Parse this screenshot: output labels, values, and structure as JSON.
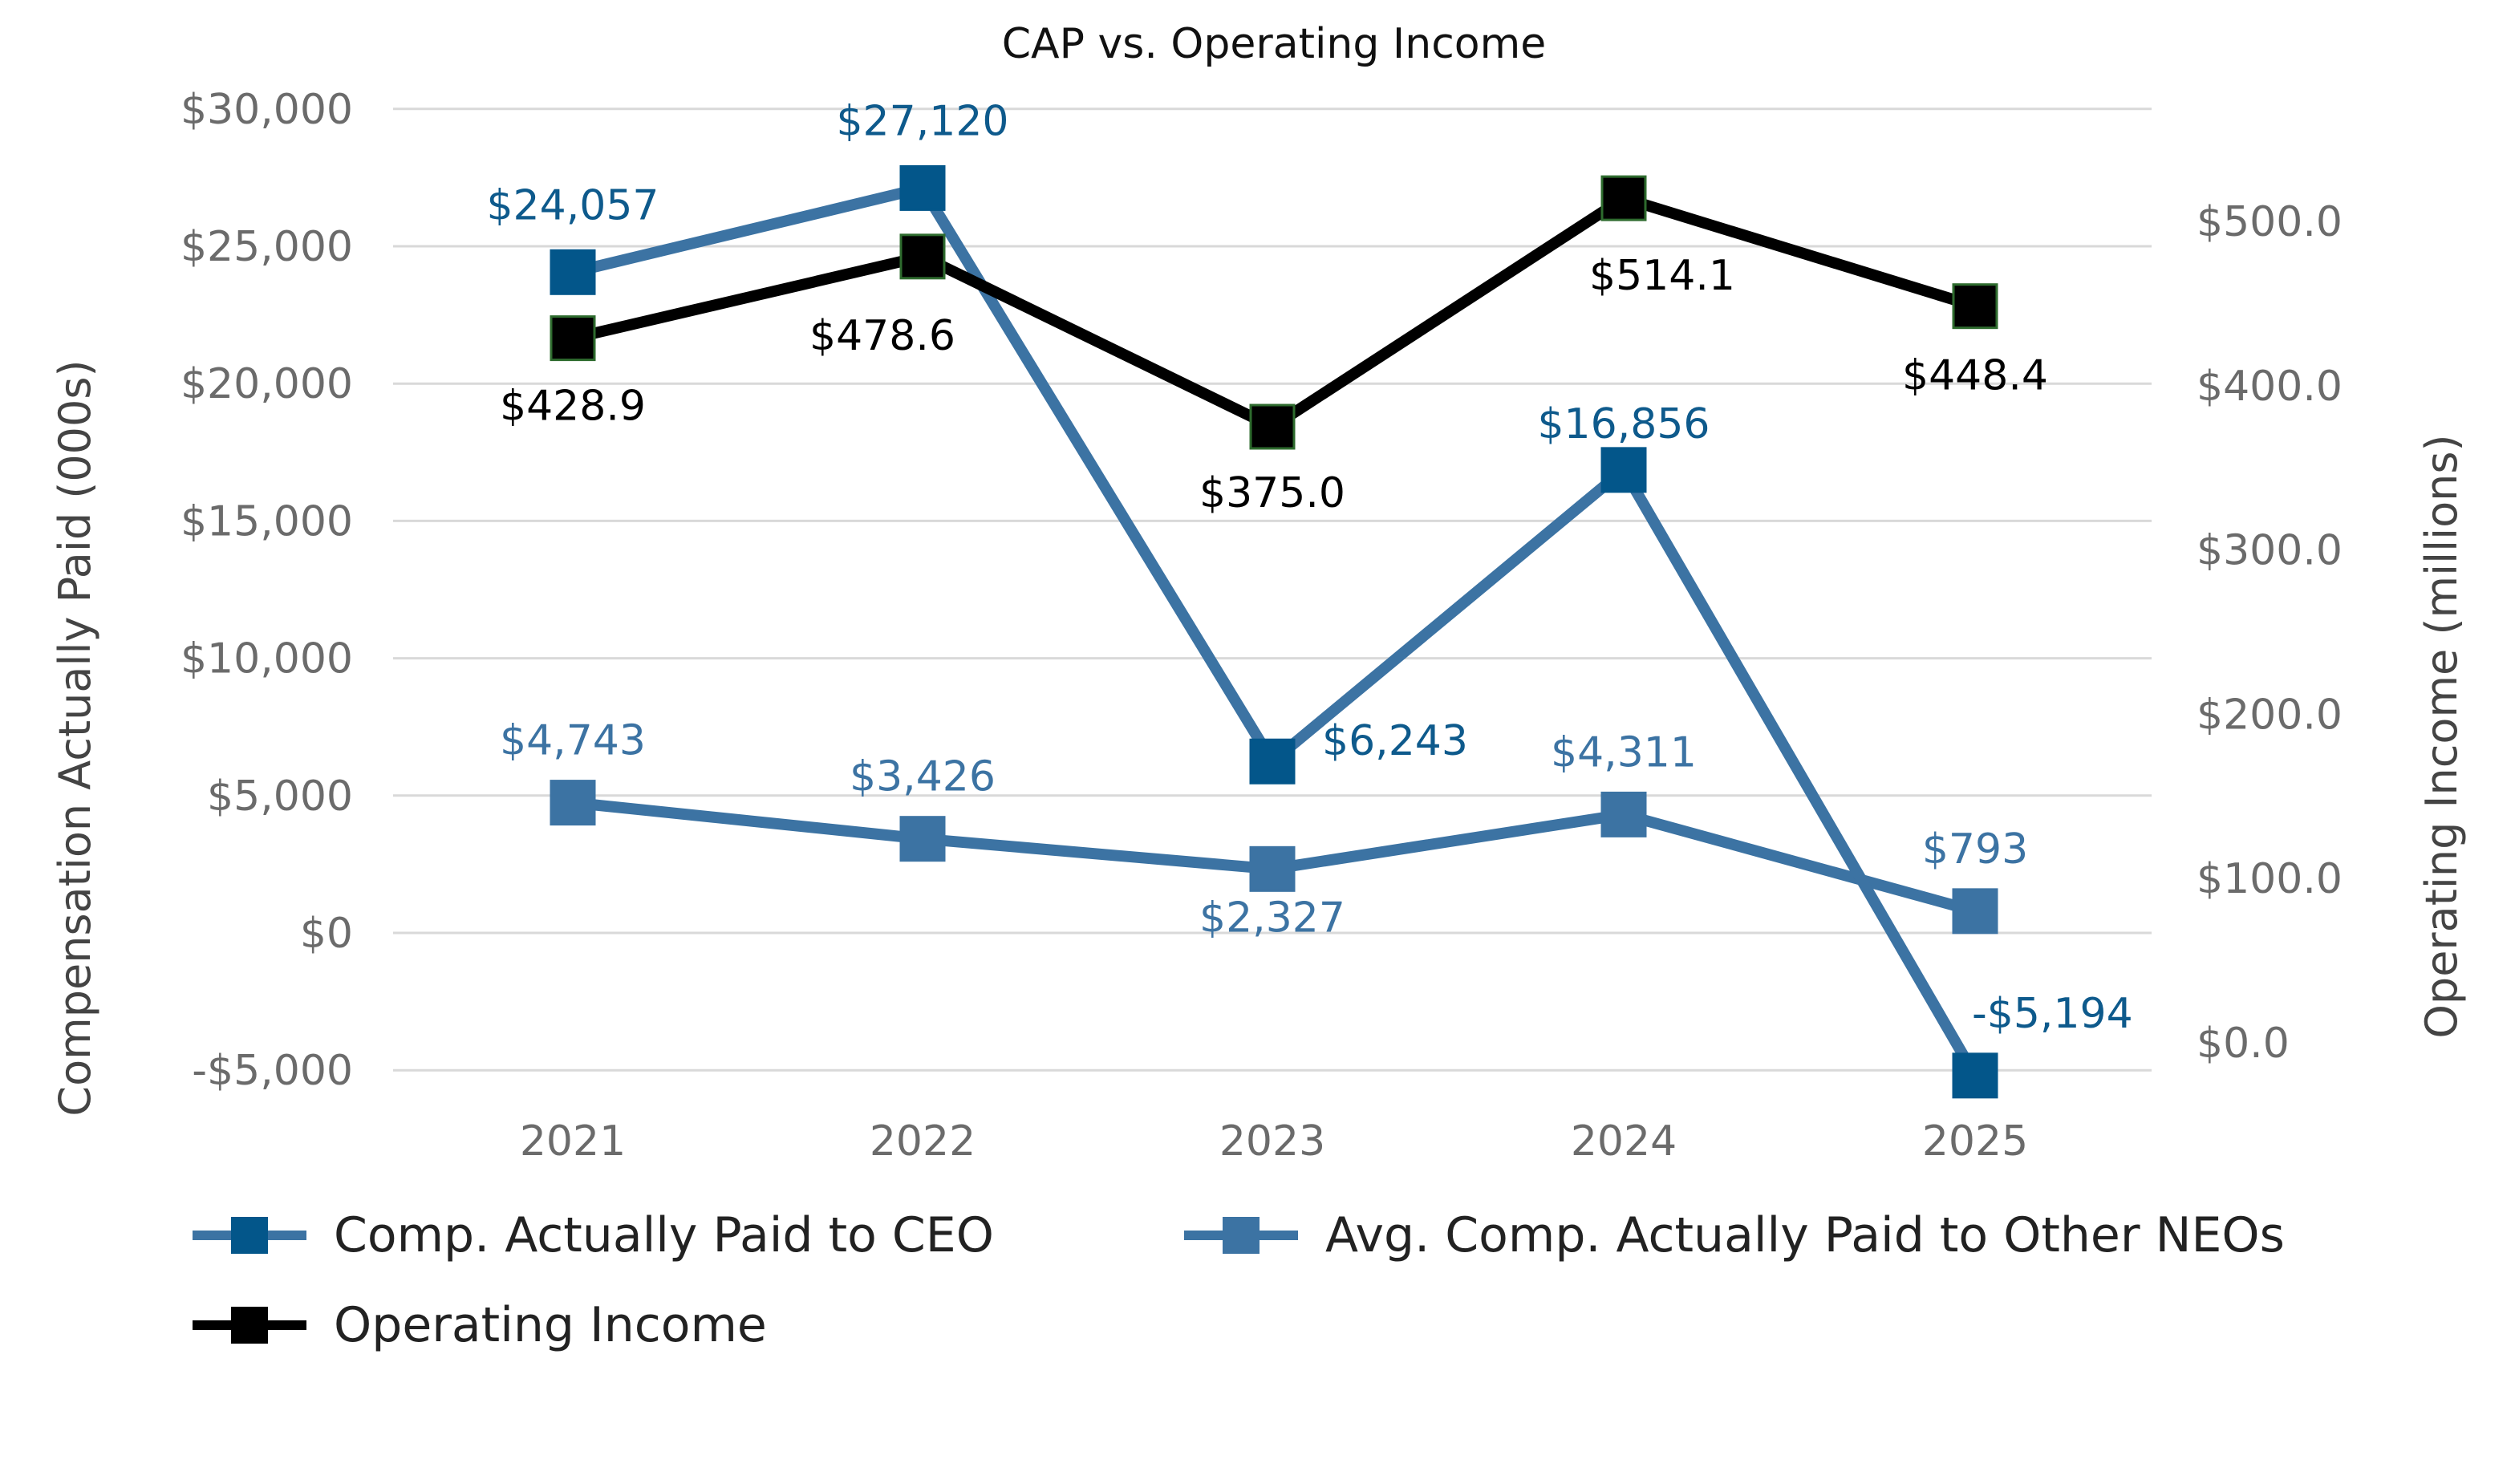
{
  "chart_data": {
    "type": "line",
    "title": "CAP vs. Operating Income",
    "categories": [
      "2021",
      "2022",
      "2023",
      "2024",
      "2025"
    ],
    "y_left": {
      "label": "Compensation Actually Paid (000s)",
      "range": [
        -5000,
        30000
      ],
      "ticks": [
        30000,
        25000,
        20000,
        15000,
        10000,
        5000,
        0,
        -5000
      ],
      "tick_labels": [
        "$30,000",
        "$25,000",
        "$20,000",
        "$15,000",
        "$10,000",
        "$5,000",
        "$0",
        "-$5,000"
      ]
    },
    "y_right": {
      "label": "Operating Income (millions)",
      "range": [
        0,
        568
      ],
      "ticks": [
        500,
        400,
        300,
        200,
        100,
        0
      ],
      "tick_labels": [
        "$500.0",
        "$400.0",
        "$300.0",
        "$200.0",
        "$100.0",
        "$0.0"
      ]
    },
    "grid": true,
    "legend_position": "bottom",
    "series": [
      {
        "name": "Comp. Actually Paid to CEO",
        "axis": "left",
        "values": [
          24057,
          27120,
          6243,
          16856,
          -5194
        ],
        "data_labels": [
          "$24,057",
          "$27,120",
          "$6,243",
          "$16,856",
          "-$5,194"
        ],
        "line_color": "#3c73a3",
        "marker_color": "#03568a",
        "label_color": "#0e5a8c"
      },
      {
        "name": "Avg. Comp. Actually Paid to Other NEOs",
        "axis": "left",
        "values": [
          4743,
          3426,
          2327,
          4311,
          793
        ],
        "data_labels": [
          "$4,743",
          "$3,426",
          "$2,327",
          "$4,311",
          "$793"
        ],
        "line_color": "#3c73a3",
        "marker_color": "#3c73a3",
        "label_color": "#3c73a3"
      },
      {
        "name": "Operating Income",
        "axis": "right",
        "values": [
          428.9,
          478.6,
          375.0,
          514.1,
          448.4
        ],
        "data_labels": [
          "$428.9",
          "$478.6",
          "$375.0",
          "$514.1",
          "$448.4"
        ],
        "line_color": "#000000",
        "marker_color": "#000000",
        "marker_border": "#2e6b2e",
        "label_color": "#000000"
      }
    ]
  }
}
